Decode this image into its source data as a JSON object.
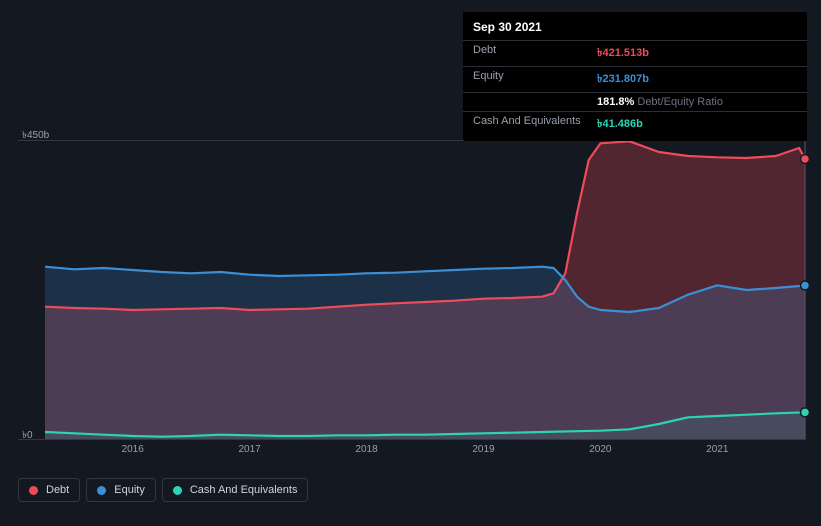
{
  "tooltip": {
    "date": "Sep 30 2021",
    "rows": [
      {
        "label": "Debt",
        "value": "৳421.513b",
        "class": "debt"
      },
      {
        "label": "Equity",
        "value": "৳231.807b",
        "class": "equity"
      },
      {
        "label": "",
        "value": "181.8%",
        "sub": "Debt/Equity Ratio",
        "class": "ratio"
      },
      {
        "label": "Cash And Equivalents",
        "value": "৳41.486b",
        "class": "cash"
      }
    ]
  },
  "chart": {
    "type": "area",
    "background_color": "#141821",
    "grid_color": "#33373f",
    "ylim_values": [
      0,
      450
    ],
    "y_ticks": [
      {
        "v": 450,
        "label": "৳450b"
      },
      {
        "v": 0,
        "label": "৳0"
      }
    ],
    "x_years": [
      2016,
      2017,
      2018,
      2019,
      2020,
      2021
    ],
    "x_range": [
      2015.25,
      2021.75
    ],
    "cursor_x": 2021.75,
    "series": [
      {
        "name": "Debt",
        "color": "#ef4b5a",
        "fill": "rgba(239,75,90,0.28)",
        "data": [
          [
            2015.25,
            200
          ],
          [
            2015.5,
            198
          ],
          [
            2015.75,
            197
          ],
          [
            2016.0,
            195
          ],
          [
            2016.25,
            196
          ],
          [
            2016.5,
            197
          ],
          [
            2016.75,
            198
          ],
          [
            2017.0,
            195
          ],
          [
            2017.25,
            196
          ],
          [
            2017.5,
            197
          ],
          [
            2017.75,
            200
          ],
          [
            2018.0,
            203
          ],
          [
            2018.25,
            205
          ],
          [
            2018.5,
            207
          ],
          [
            2018.75,
            209
          ],
          [
            2019.0,
            212
          ],
          [
            2019.25,
            213
          ],
          [
            2019.5,
            215
          ],
          [
            2019.6,
            220
          ],
          [
            2019.7,
            250
          ],
          [
            2019.8,
            340
          ],
          [
            2019.9,
            420
          ],
          [
            2020.0,
            445
          ],
          [
            2020.25,
            448
          ],
          [
            2020.5,
            432
          ],
          [
            2020.75,
            426
          ],
          [
            2021.0,
            424
          ],
          [
            2021.25,
            423
          ],
          [
            2021.5,
            426
          ],
          [
            2021.7,
            438
          ],
          [
            2021.75,
            421.5
          ]
        ]
      },
      {
        "name": "Equity",
        "color": "#3b8fd6",
        "fill": "rgba(59,143,214,0.22)",
        "data": [
          [
            2015.25,
            260
          ],
          [
            2015.5,
            256
          ],
          [
            2015.75,
            258
          ],
          [
            2016.0,
            255
          ],
          [
            2016.25,
            252
          ],
          [
            2016.5,
            250
          ],
          [
            2016.75,
            252
          ],
          [
            2017.0,
            248
          ],
          [
            2017.25,
            246
          ],
          [
            2017.5,
            247
          ],
          [
            2017.75,
            248
          ],
          [
            2018.0,
            250
          ],
          [
            2018.25,
            251
          ],
          [
            2018.5,
            253
          ],
          [
            2018.75,
            255
          ],
          [
            2019.0,
            257
          ],
          [
            2019.25,
            258
          ],
          [
            2019.5,
            260
          ],
          [
            2019.6,
            258
          ],
          [
            2019.7,
            240
          ],
          [
            2019.8,
            215
          ],
          [
            2019.9,
            200
          ],
          [
            2020.0,
            195
          ],
          [
            2020.25,
            192
          ],
          [
            2020.5,
            198
          ],
          [
            2020.75,
            218
          ],
          [
            2021.0,
            232
          ],
          [
            2021.25,
            225
          ],
          [
            2021.5,
            228
          ],
          [
            2021.75,
            231.8
          ]
        ]
      },
      {
        "name": "Cash And Equivalents",
        "color": "#2bd4b5",
        "fill": "rgba(43,212,181,0.10)",
        "data": [
          [
            2015.25,
            12
          ],
          [
            2015.5,
            10
          ],
          [
            2015.75,
            8
          ],
          [
            2016.0,
            6
          ],
          [
            2016.25,
            5
          ],
          [
            2016.5,
            6
          ],
          [
            2016.75,
            8
          ],
          [
            2017.0,
            7
          ],
          [
            2017.25,
            6
          ],
          [
            2017.5,
            6
          ],
          [
            2017.75,
            7
          ],
          [
            2018.0,
            7
          ],
          [
            2018.25,
            8
          ],
          [
            2018.5,
            8
          ],
          [
            2018.75,
            9
          ],
          [
            2019.0,
            10
          ],
          [
            2019.25,
            11
          ],
          [
            2019.5,
            12
          ],
          [
            2019.75,
            13
          ],
          [
            2020.0,
            14
          ],
          [
            2020.25,
            16
          ],
          [
            2020.5,
            24
          ],
          [
            2020.75,
            34
          ],
          [
            2021.0,
            36
          ],
          [
            2021.25,
            38
          ],
          [
            2021.5,
            40
          ],
          [
            2021.75,
            41.5
          ]
        ]
      }
    ],
    "markers": [
      {
        "x": 2021.75,
        "y": 421.5,
        "color": "#ef4b5a"
      },
      {
        "x": 2021.75,
        "y": 231.8,
        "color": "#3b8fd6"
      },
      {
        "x": 2021.75,
        "y": 41.5,
        "color": "#2bd4b5"
      }
    ]
  },
  "legend": [
    {
      "label": "Debt",
      "color": "#ef4b5a"
    },
    {
      "label": "Equity",
      "color": "#3b8fd6"
    },
    {
      "label": "Cash And Equivalents",
      "color": "#2bd4b5"
    }
  ]
}
